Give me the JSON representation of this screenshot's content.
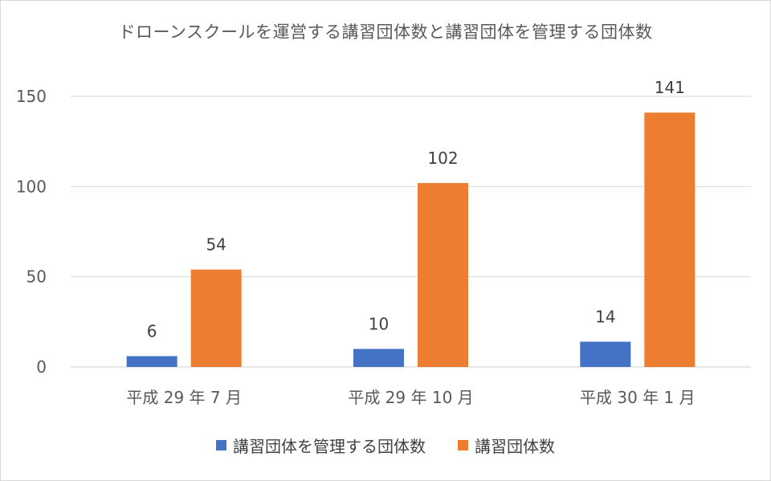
{
  "chart_data": {
    "type": "bar",
    "title": "ドローンスクールを運営する講習団体数と講習団体を管理する団体数",
    "categories": [
      "平成 29 年 7 月",
      "平成 29 年 10 月",
      "平成 30 年 1 月"
    ],
    "series": [
      {
        "name": "講習団体を管理する団体数",
        "values": [
          6,
          10,
          14
        ],
        "color": "#4472c4"
      },
      {
        "name": "講習団体数",
        "values": [
          54,
          102,
          141
        ],
        "color": "#ed7d31"
      }
    ],
    "yticks": [
      0,
      50,
      100,
      150
    ],
    "ylim": [
      0,
      150
    ],
    "grid": true,
    "legend_position": "bottom",
    "data_labels": true
  }
}
